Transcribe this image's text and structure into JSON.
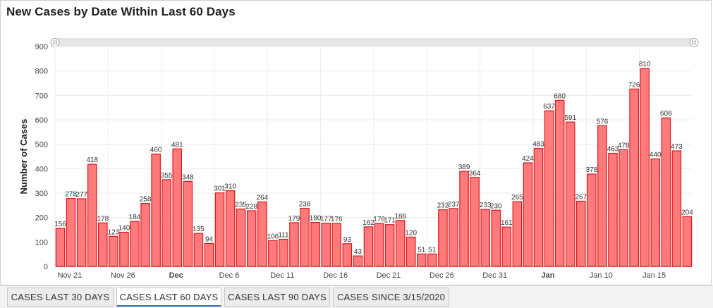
{
  "chart_data": {
    "type": "bar",
    "title": "New Cases by Date Within Last 60 Days",
    "ylabel": "Number of Cases",
    "ylim": [
      0,
      900
    ],
    "yticks": [
      0,
      100,
      200,
      300,
      400,
      500,
      600,
      700,
      800,
      900
    ],
    "x_tick_labels": [
      {
        "index": 0,
        "label": "Nov 21",
        "bold": false
      },
      {
        "index": 5,
        "label": "Nov 26",
        "bold": false
      },
      {
        "index": 10,
        "label": "Dec",
        "bold": true
      },
      {
        "index": 15,
        "label": "Dec 6",
        "bold": false
      },
      {
        "index": 20,
        "label": "Dec 11",
        "bold": false
      },
      {
        "index": 25,
        "label": "Dec 16",
        "bold": false
      },
      {
        "index": 30,
        "label": "Dec 21",
        "bold": false
      },
      {
        "index": 35,
        "label": "Dec 26",
        "bold": false
      },
      {
        "index": 40,
        "label": "Dec 31",
        "bold": false
      },
      {
        "index": 45,
        "label": "Jan",
        "bold": true
      },
      {
        "index": 50,
        "label": "Jan 10",
        "bold": false
      },
      {
        "index": 55,
        "label": "Jan 15",
        "bold": false
      }
    ],
    "values": [
      156,
      278,
      277,
      418,
      178,
      123,
      140,
      184,
      258,
      460,
      355,
      481,
      348,
      135,
      94,
      301,
      310,
      235,
      228,
      264,
      106,
      111,
      179,
      238,
      180,
      177,
      176,
      93,
      43,
      162,
      176,
      171,
      188,
      120,
      51,
      51,
      232,
      237,
      389,
      364,
      233,
      230,
      161,
      265,
      424,
      483,
      637,
      680,
      591,
      267,
      378,
      576,
      463,
      478,
      726,
      810,
      440,
      608,
      473,
      204
    ],
    "grid": true,
    "bar_color": "#ff7b7b",
    "bar_border_color": "#e0151b"
  },
  "tabs": [
    {
      "label": "CASES LAST 30 DAYS",
      "active": false
    },
    {
      "label": "CASES LAST 60 DAYS",
      "active": true
    },
    {
      "label": "CASES LAST 90 DAYS",
      "active": false
    },
    {
      "label": "CASES SINCE 3/15/2020",
      "active": false
    }
  ]
}
